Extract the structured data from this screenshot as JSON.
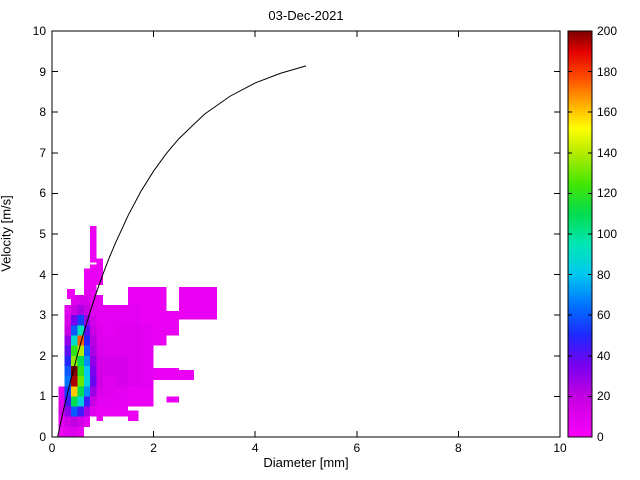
{
  "chart_data": {
    "type": "heatmap",
    "title": "03-Dec-2021",
    "xlabel": "Diameter [mm]",
    "ylabel": "Velocity [m/s]",
    "xlim": [
      0,
      10
    ],
    "ylim": [
      0,
      10
    ],
    "clim": [
      0,
      200
    ],
    "xticks": [
      0,
      2,
      4,
      6,
      8,
      10
    ],
    "yticks": [
      0,
      1,
      2,
      3,
      4,
      5,
      6,
      7,
      8,
      9,
      10
    ],
    "colorbar_ticks": [
      0,
      20,
      40,
      60,
      80,
      100,
      120,
      140,
      160,
      180,
      200
    ],
    "colormap_stops": [
      [
        0,
        "#fa00fa"
      ],
      [
        20,
        "#c300e0"
      ],
      [
        35,
        "#7a00f0"
      ],
      [
        50,
        "#1e28ff"
      ],
      [
        65,
        "#0073ff"
      ],
      [
        80,
        "#00c8f0"
      ],
      [
        95,
        "#00e6b4"
      ],
      [
        110,
        "#00dc50"
      ],
      [
        125,
        "#46e600"
      ],
      [
        140,
        "#b4eb00"
      ],
      [
        152,
        "#ffff00"
      ],
      [
        165,
        "#ffa500"
      ],
      [
        178,
        "#ff4600"
      ],
      [
        190,
        "#e10000"
      ],
      [
        200,
        "#7d0000"
      ]
    ],
    "cells_format": [
      "diameter_left_mm",
      "velocity_bottom_ms",
      "width_mm",
      "height_ms",
      "count"
    ],
    "cells": [
      [
        0.125,
        0.0,
        0.125,
        0.25,
        6
      ],
      [
        0.125,
        0.25,
        0.125,
        0.25,
        8
      ],
      [
        0.125,
        0.5,
        0.125,
        0.25,
        12
      ],
      [
        0.125,
        0.75,
        0.125,
        0.25,
        10
      ],
      [
        0.125,
        1.0,
        0.125,
        0.25,
        8
      ],
      [
        0.25,
        0.0,
        0.125,
        0.25,
        8
      ],
      [
        0.25,
        0.25,
        0.125,
        0.25,
        15
      ],
      [
        0.25,
        0.5,
        0.125,
        0.25,
        30
      ],
      [
        0.25,
        0.75,
        0.125,
        0.25,
        45
      ],
      [
        0.25,
        1.0,
        0.125,
        0.25,
        55
      ],
      [
        0.25,
        1.25,
        0.125,
        0.25,
        65
      ],
      [
        0.25,
        1.5,
        0.125,
        0.25,
        60
      ],
      [
        0.25,
        1.75,
        0.125,
        0.25,
        50
      ],
      [
        0.25,
        2.0,
        0.125,
        0.25,
        40
      ],
      [
        0.25,
        2.25,
        0.125,
        0.25,
        30
      ],
      [
        0.25,
        2.5,
        0.125,
        0.25,
        18
      ],
      [
        0.25,
        2.75,
        0.125,
        0.25,
        12
      ],
      [
        0.25,
        3.0,
        0.125,
        0.25,
        8
      ],
      [
        0.375,
        0.0,
        0.125,
        0.25,
        10
      ],
      [
        0.375,
        0.25,
        0.125,
        0.25,
        20
      ],
      [
        0.375,
        0.5,
        0.125,
        0.25,
        60
      ],
      [
        0.375,
        0.75,
        0.125,
        0.25,
        110
      ],
      [
        0.375,
        1.0,
        0.125,
        0.25,
        160
      ],
      [
        0.375,
        1.25,
        0.125,
        0.25,
        195
      ],
      [
        0.375,
        1.5,
        0.125,
        0.25,
        200
      ],
      [
        0.375,
        1.75,
        0.125,
        0.25,
        135
      ],
      [
        0.375,
        2.0,
        0.125,
        0.25,
        120
      ],
      [
        0.375,
        2.25,
        0.125,
        0.25,
        90
      ],
      [
        0.375,
        2.5,
        0.125,
        0.25,
        60
      ],
      [
        0.375,
        2.75,
        0.125,
        0.25,
        35
      ],
      [
        0.375,
        3.0,
        0.125,
        0.25,
        18
      ],
      [
        0.375,
        3.25,
        0.125,
        0.25,
        10
      ],
      [
        0.3,
        3.4,
        0.15,
        0.25,
        5
      ],
      [
        0.5,
        0.0,
        0.125,
        0.25,
        6
      ],
      [
        0.5,
        0.25,
        0.125,
        0.25,
        15
      ],
      [
        0.5,
        0.5,
        0.125,
        0.25,
        45
      ],
      [
        0.5,
        0.75,
        0.125,
        0.25,
        85
      ],
      [
        0.5,
        1.0,
        0.125,
        0.25,
        110
      ],
      [
        0.5,
        1.25,
        0.125,
        0.25,
        130
      ],
      [
        0.5,
        1.5,
        0.125,
        0.25,
        120
      ],
      [
        0.5,
        1.75,
        0.125,
        0.25,
        110
      ],
      [
        0.5,
        2.0,
        0.125,
        0.25,
        140
      ],
      [
        0.5,
        2.25,
        0.125,
        0.25,
        175
      ],
      [
        0.5,
        2.5,
        0.125,
        0.25,
        95
      ],
      [
        0.5,
        2.75,
        0.125,
        0.25,
        55
      ],
      [
        0.5,
        3.0,
        0.125,
        0.25,
        25
      ],
      [
        0.5,
        3.25,
        0.125,
        0.25,
        12
      ],
      [
        0.625,
        0.25,
        0.125,
        0.25,
        8
      ],
      [
        0.625,
        0.5,
        0.125,
        0.25,
        25
      ],
      [
        0.625,
        0.75,
        0.125,
        0.25,
        45
      ],
      [
        0.625,
        1.0,
        0.125,
        0.25,
        70
      ],
      [
        0.625,
        1.25,
        0.125,
        0.25,
        85
      ],
      [
        0.625,
        1.5,
        0.125,
        0.25,
        80
      ],
      [
        0.625,
        1.75,
        0.125,
        0.25,
        70
      ],
      [
        0.625,
        2.0,
        0.125,
        0.25,
        60
      ],
      [
        0.625,
        2.25,
        0.125,
        0.25,
        50
      ],
      [
        0.625,
        2.5,
        0.125,
        0.25,
        40
      ],
      [
        0.625,
        2.75,
        0.125,
        0.25,
        28
      ],
      [
        0.625,
        3.0,
        0.125,
        0.25,
        18
      ],
      [
        0.625,
        3.25,
        0.125,
        0.25,
        12
      ],
      [
        0.625,
        3.5,
        0.125,
        0.25,
        8
      ],
      [
        0.625,
        3.75,
        0.125,
        0.4,
        6
      ],
      [
        0.75,
        0.5,
        0.125,
        0.25,
        10
      ],
      [
        0.75,
        0.75,
        0.125,
        0.25,
        18
      ],
      [
        0.75,
        1.0,
        0.125,
        0.25,
        28
      ],
      [
        0.75,
        1.25,
        0.125,
        0.25,
        38
      ],
      [
        0.75,
        1.5,
        0.125,
        0.25,
        35
      ],
      [
        0.75,
        1.75,
        0.125,
        0.25,
        30
      ],
      [
        0.75,
        2.0,
        0.125,
        0.25,
        25
      ],
      [
        0.75,
        2.25,
        0.125,
        0.25,
        22
      ],
      [
        0.75,
        2.5,
        0.125,
        0.25,
        18
      ],
      [
        0.75,
        2.75,
        0.125,
        0.25,
        14
      ],
      [
        0.75,
        3.0,
        0.125,
        0.25,
        10
      ],
      [
        0.75,
        3.25,
        0.125,
        0.25,
        8
      ],
      [
        0.75,
        3.5,
        0.125,
        0.25,
        6
      ],
      [
        0.75,
        3.75,
        0.125,
        0.5,
        6
      ],
      [
        0.75,
        4.3,
        0.125,
        0.9,
        5
      ],
      [
        0.875,
        0.4,
        0.125,
        0.35,
        5
      ],
      [
        0.875,
        0.75,
        0.125,
        0.25,
        8
      ],
      [
        0.875,
        1.0,
        0.125,
        0.25,
        12
      ],
      [
        0.875,
        1.25,
        0.125,
        0.25,
        15
      ],
      [
        0.875,
        1.5,
        0.125,
        0.25,
        15
      ],
      [
        0.875,
        1.75,
        0.125,
        0.25,
        14
      ],
      [
        0.875,
        2.0,
        0.125,
        0.25,
        12
      ],
      [
        0.875,
        2.25,
        0.125,
        0.25,
        10
      ],
      [
        0.875,
        2.5,
        0.125,
        0.25,
        10
      ],
      [
        0.875,
        2.75,
        0.125,
        0.25,
        8
      ],
      [
        0.875,
        3.0,
        0.125,
        0.5,
        8
      ],
      [
        0.875,
        3.75,
        0.125,
        0.65,
        6
      ],
      [
        1.0,
        0.5,
        0.25,
        0.25,
        6
      ],
      [
        1.0,
        0.75,
        0.25,
        0.25,
        8
      ],
      [
        1.0,
        1.0,
        0.25,
        0.5,
        10
      ],
      [
        1.0,
        1.5,
        0.25,
        0.5,
        12
      ],
      [
        1.0,
        2.0,
        0.25,
        0.5,
        10
      ],
      [
        1.0,
        2.5,
        0.25,
        0.75,
        8
      ],
      [
        1.25,
        0.5,
        0.25,
        0.25,
        5
      ],
      [
        1.25,
        0.75,
        0.25,
        0.5,
        8
      ],
      [
        1.25,
        1.25,
        0.25,
        0.75,
        12
      ],
      [
        1.25,
        2.0,
        0.25,
        0.75,
        10
      ],
      [
        1.25,
        2.75,
        0.25,
        0.5,
        8
      ],
      [
        1.5,
        0.4,
        0.2,
        0.25,
        5
      ],
      [
        1.5,
        0.75,
        0.25,
        0.5,
        6
      ],
      [
        1.5,
        1.25,
        0.25,
        0.75,
        10
      ],
      [
        1.5,
        2.0,
        0.25,
        0.75,
        10
      ],
      [
        1.5,
        2.75,
        0.25,
        0.5,
        8
      ],
      [
        1.5,
        3.25,
        0.75,
        0.45,
        6
      ],
      [
        1.75,
        0.75,
        0.25,
        0.5,
        6
      ],
      [
        1.75,
        1.25,
        0.25,
        0.75,
        8
      ],
      [
        1.75,
        2.0,
        0.25,
        0.75,
        8
      ],
      [
        1.75,
        2.75,
        0.25,
        0.5,
        6
      ],
      [
        2.0,
        1.4,
        0.25,
        0.3,
        5
      ],
      [
        2.0,
        2.25,
        0.25,
        0.5,
        6
      ],
      [
        2.0,
        2.75,
        0.25,
        0.5,
        6
      ],
      [
        2.25,
        0.85,
        0.25,
        0.15,
        5
      ],
      [
        2.25,
        1.4,
        0.25,
        0.3,
        5
      ],
      [
        2.25,
        2.5,
        0.25,
        0.6,
        6
      ],
      [
        2.5,
        1.4,
        0.3,
        0.25,
        5
      ],
      [
        2.5,
        2.9,
        0.75,
        0.35,
        6
      ],
      [
        2.5,
        3.25,
        0.75,
        0.45,
        6
      ]
    ],
    "curve": {
      "name": "terminal-velocity-vs-diameter",
      "x": [
        0.11,
        0.125,
        0.1875,
        0.25,
        0.375,
        0.5,
        0.625,
        0.75,
        0.875,
        1.0,
        1.125,
        1.25,
        1.5,
        1.75,
        2.0,
        2.25,
        2.5,
        3.0,
        3.5,
        4.0,
        4.5,
        5.0
      ],
      "y": [
        0,
        0.09,
        0.45,
        0.79,
        1.43,
        2.02,
        2.57,
        3.08,
        3.56,
        4.0,
        4.41,
        4.78,
        5.46,
        6.05,
        6.55,
        6.98,
        7.35,
        7.95,
        8.39,
        8.72,
        8.96,
        9.14
      ]
    }
  }
}
